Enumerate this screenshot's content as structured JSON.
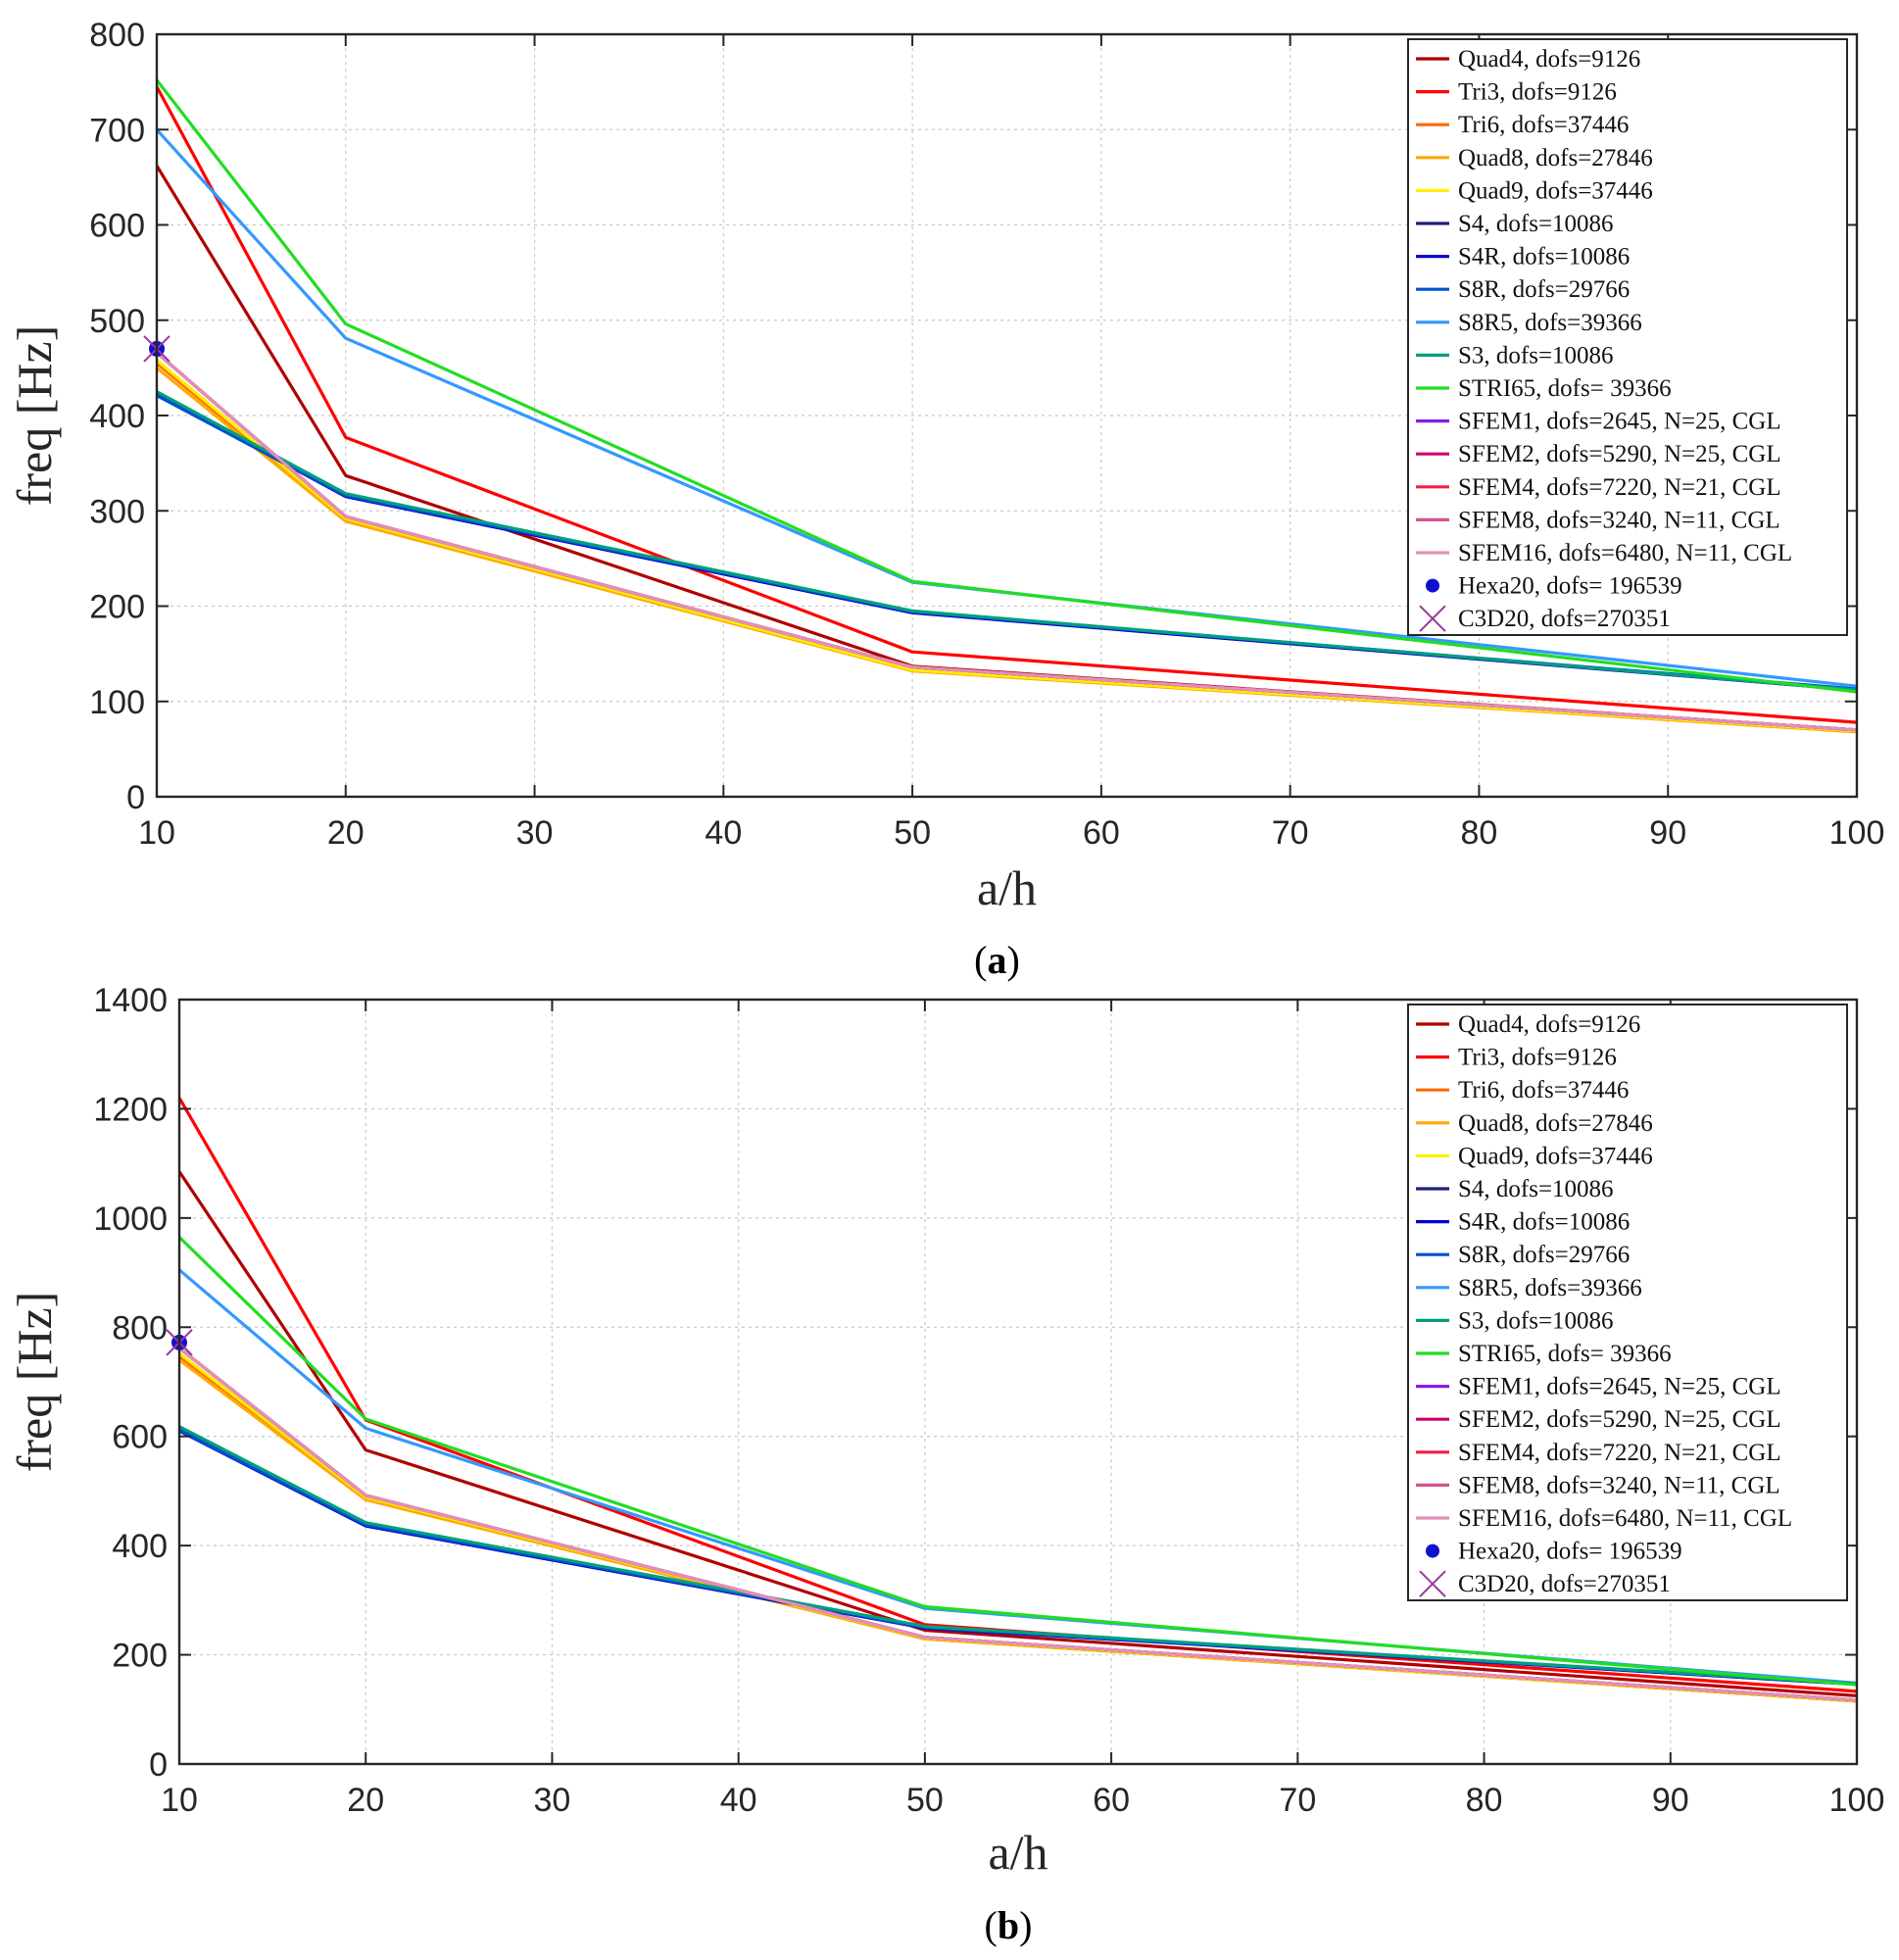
{
  "chart_data": [
    {
      "type": "line",
      "caption_letter": "a",
      "xlabel": "a/h",
      "ylabel": "freq [Hz]",
      "xlim": [
        10,
        100
      ],
      "ylim": [
        0,
        800
      ],
      "xticks": [
        10,
        20,
        30,
        40,
        50,
        60,
        70,
        80,
        90,
        100
      ],
      "yticks": [
        0,
        100,
        200,
        300,
        400,
        500,
        600,
        700,
        800
      ],
      "grid": true,
      "legend_position": "top-right",
      "x": [
        10,
        20,
        50,
        100
      ],
      "series": [
        {
          "name": "Quad4, dofs=9126",
          "color": "#b00000",
          "values": [
            662,
            337,
            137,
            70
          ]
        },
        {
          "name": "Tri3, dofs=9126",
          "color": "#ff0000",
          "values": [
            745,
            377,
            152,
            78
          ]
        },
        {
          "name": "Tri6, dofs=37446",
          "color": "#ff6a00",
          "values": [
            455,
            291,
            133,
            69
          ]
        },
        {
          "name": "Quad8, dofs=27846",
          "color": "#ffaa00",
          "values": [
            450,
            289,
            132,
            68
          ]
        },
        {
          "name": "Quad9, dofs=37446",
          "color": "#ffee00",
          "values": [
            458,
            292,
            133,
            69
          ]
        },
        {
          "name": "S4, dofs=10086",
          "color": "#1f1f7a",
          "values": [
            423,
            316,
            194,
            112
          ]
        },
        {
          "name": "S4R, dofs=10086",
          "color": "#0000d0",
          "values": [
            422,
            315,
            193,
            112
          ]
        },
        {
          "name": "S8R, dofs=29766",
          "color": "#0050d0",
          "values": [
            421,
            316,
            194,
            113
          ]
        },
        {
          "name": "S8R5, dofs=39366",
          "color": "#3399ff",
          "values": [
            700,
            481,
            225,
            116
          ]
        },
        {
          "name": "S3, dofs=10086",
          "color": "#00a080",
          "values": [
            425,
            318,
            195,
            112
          ]
        },
        {
          "name": "STRI65, dofs= 39366",
          "color": "#22dd22",
          "values": [
            752,
            496,
            226,
            110
          ]
        },
        {
          "name": "SFEM1, dofs=2645, N=25, CGL",
          "color": "#8a1ae6",
          "values": [
            466,
            294,
            136,
            70
          ]
        },
        {
          "name": "SFEM2, dofs=5290, N=25, CGL",
          "color": "#d0006a",
          "values": [
            466,
            294,
            136,
            70
          ]
        },
        {
          "name": "SFEM4, dofs=7220, N=21, CGL",
          "color": "#f0204a",
          "values": [
            466,
            294,
            136,
            70
          ]
        },
        {
          "name": "SFEM8, dofs=3240, N=11, CGL",
          "color": "#d85090",
          "values": [
            466,
            294,
            136,
            70
          ]
        },
        {
          "name": "SFEM16, dofs=6480, N=11, CGL",
          "color": "#e090b8",
          "values": [
            466,
            294,
            136,
            70
          ]
        }
      ],
      "markers": [
        {
          "name": "Hexa20, dofs= 196539",
          "symbol": "dot",
          "color": "#1010d0",
          "x": 10,
          "y": 470
        },
        {
          "name": "C3D20, dofs=270351",
          "symbol": "cross",
          "color": "#9a3a9a",
          "x": 10,
          "y": 470
        }
      ]
    },
    {
      "type": "line",
      "caption_letter": "b",
      "xlabel": "a/h",
      "ylabel": "freq [Hz]",
      "xlim": [
        10,
        100
      ],
      "ylim": [
        0,
        1400
      ],
      "xticks": [
        10,
        20,
        30,
        40,
        50,
        60,
        70,
        80,
        90,
        100
      ],
      "yticks": [
        0,
        200,
        400,
        600,
        800,
        1000,
        1200,
        1400
      ],
      "grid": true,
      "legend_position": "top-right",
      "x": [
        10,
        20,
        50,
        100
      ],
      "series": [
        {
          "name": "Quad4, dofs=9126",
          "color": "#b00000",
          "values": [
            1085,
            575,
            245,
            125
          ]
        },
        {
          "name": "Tri3, dofs=9126",
          "color": "#ff0000",
          "values": [
            1220,
            630,
            255,
            133
          ]
        },
        {
          "name": "Tri6, dofs=37446",
          "color": "#ff6a00",
          "values": [
            745,
            487,
            230,
            115
          ]
        },
        {
          "name": "Quad8, dofs=27846",
          "color": "#ffaa00",
          "values": [
            740,
            484,
            229,
            115
          ]
        },
        {
          "name": "Quad9, dofs=37446",
          "color": "#ffee00",
          "values": [
            752,
            489,
            231,
            116
          ]
        },
        {
          "name": "S4, dofs=10086",
          "color": "#1f1f7a",
          "values": [
            612,
            437,
            250,
            146
          ]
        },
        {
          "name": "S4R, dofs=10086",
          "color": "#0000d0",
          "values": [
            610,
            436,
            249,
            146
          ]
        },
        {
          "name": "S8R, dofs=29766",
          "color": "#0050d0",
          "values": [
            611,
            438,
            250,
            147
          ]
        },
        {
          "name": "S8R5, dofs=39366",
          "color": "#3399ff",
          "values": [
            905,
            615,
            285,
            148
          ]
        },
        {
          "name": "S3, dofs=10086",
          "color": "#00a080",
          "values": [
            618,
            442,
            252,
            147
          ]
        },
        {
          "name": "STRI65, dofs= 39366",
          "color": "#22dd22",
          "values": [
            965,
            632,
            288,
            145
          ]
        },
        {
          "name": "SFEM1, dofs=2645, N=25, CGL",
          "color": "#8a1ae6",
          "values": [
            762,
            492,
            232,
            117
          ]
        },
        {
          "name": "SFEM2, dofs=5290, N=25, CGL",
          "color": "#d0006a",
          "values": [
            762,
            492,
            232,
            117
          ]
        },
        {
          "name": "SFEM4, dofs=7220, N=21, CGL",
          "color": "#f0204a",
          "values": [
            762,
            492,
            232,
            117
          ]
        },
        {
          "name": "SFEM8, dofs=3240, N=11, CGL",
          "color": "#d85090",
          "values": [
            762,
            492,
            232,
            117
          ]
        },
        {
          "name": "SFEM16, dofs=6480, N=11, CGL",
          "color": "#e090b8",
          "values": [
            762,
            492,
            232,
            117
          ]
        }
      ],
      "markers": [
        {
          "name": "Hexa20, dofs= 196539",
          "symbol": "dot",
          "color": "#1010d0",
          "x": 10,
          "y": 772
        },
        {
          "name": "C3D20, dofs=270351",
          "symbol": "cross",
          "color": "#9a3a9a",
          "x": 10,
          "y": 772
        }
      ]
    }
  ]
}
